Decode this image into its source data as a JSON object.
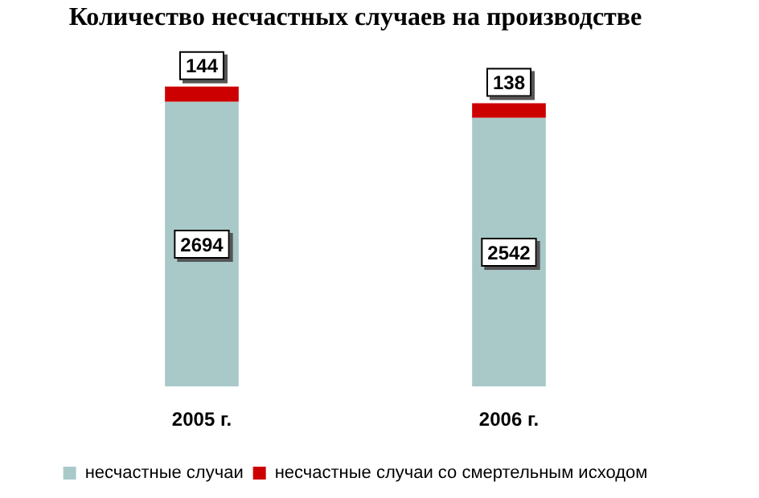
{
  "chart_data": {
    "type": "bar",
    "title": "Количество несчастных случаев на производстве",
    "categories": [
      "2005 г.",
      "2006 г."
    ],
    "stacked": true,
    "data_labels": true,
    "legend": "bottom",
    "grid": false,
    "series": [
      {
        "name": "несчастные случаи",
        "color": "#a9c9c9",
        "values": [
          2694,
          2542
        ]
      },
      {
        "name": "несчастные случаи со смертельным исходом",
        "color": "#cc0000",
        "values": [
          144,
          138
        ]
      }
    ]
  }
}
